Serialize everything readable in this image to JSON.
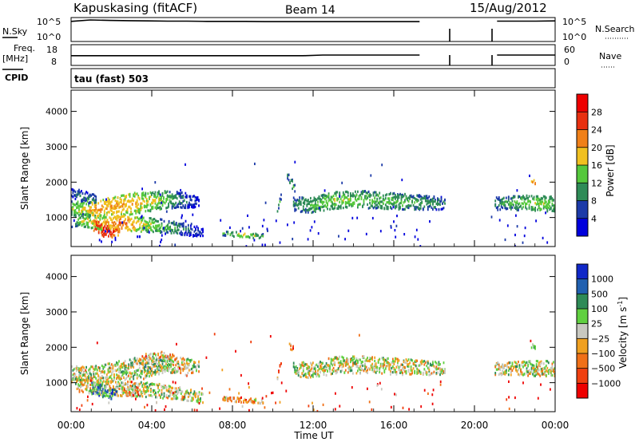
{
  "header": {
    "site": "Kapuskasing (fitACF)",
    "beam": "Beam 14",
    "date": "15/Aug/2012"
  },
  "summary": {
    "nsky_label": "N.Sky",
    "nsky_ticks": [
      "10^5",
      "10^0"
    ],
    "nsearch_label": "N.Search",
    "freq_label": "Freq.",
    "freq_unit": "[MHz]",
    "freq_ticks": [
      "18",
      "8"
    ],
    "nave_label": "Nave",
    "nave_ticks": [
      "60",
      "0"
    ],
    "cpid_label": "CPID",
    "cpid_value": "tau (fast) 503",
    "nsky_level": [
      0.84,
      0.9,
      0.88,
      0.87,
      0.86,
      0.85,
      0.85,
      0.84,
      0.84,
      0.84,
      0.83,
      0.83,
      0.83,
      0.83,
      0.83,
      0.83,
      0.83,
      0.83,
      0.83,
      null,
      null,
      null,
      0.85,
      0.85,
      0.85,
      0.86
    ],
    "freq_level": [
      0.47,
      0.47,
      0.47,
      0.47,
      0.47,
      0.47,
      0.47,
      0.47,
      0.47,
      0.47,
      0.47,
      0.47,
      0.47,
      0.5,
      0.5,
      0.5,
      0.5,
      0.5,
      0.5,
      null,
      null,
      null,
      0.5,
      0.5,
      0.5,
      0.5
    ]
  },
  "chart_data": [
    {
      "type": "heatmap",
      "name": "power",
      "ylabel": "Slant Range [km]",
      "yticks": [
        1000,
        2000,
        3000,
        4000
      ],
      "ylim": [
        180,
        4600
      ],
      "xlim": [
        0,
        24
      ],
      "colorbar_label": "Power [dB]",
      "colorbar_ticks": [
        4,
        8,
        12,
        16,
        20,
        24,
        28
      ],
      "colorbar_range": [
        0,
        32
      ],
      "colors": [
        "#0000dd",
        "#1c3aa8",
        "#2e8b57",
        "#55c83c",
        "#f0c020",
        "#f08018",
        "#e83010",
        "#ee0000"
      ],
      "features": [
        {
          "t": [
            0.0,
            1.2,
            3.0,
            4.5,
            5.5,
            6.3
          ],
          "r": [
            1250,
            1250,
            1400,
            1520,
            1500,
            1450
          ],
          "w": [
            220,
            240,
            300,
            260,
            220,
            160
          ],
          "v": [
            14,
            22,
            20,
            16,
            10,
            6
          ]
        },
        {
          "t": [
            0.2,
            1.5,
            2.5,
            4.0,
            5.2,
            6.5
          ],
          "r": [
            950,
            850,
            850,
            800,
            720,
            580
          ],
          "w": [
            180,
            200,
            220,
            200,
            180,
            140
          ],
          "v": [
            14,
            20,
            24,
            16,
            12,
            6
          ]
        },
        {
          "t": [
            1.1,
            1.6,
            2.0,
            2.4
          ],
          "r": [
            800,
            650,
            600,
            650
          ],
          "w": [
            160,
            180,
            160,
            120
          ],
          "v": [
            28,
            30,
            28,
            24
          ]
        },
        {
          "t": [
            0.0,
            0.6,
            1.2
          ],
          "r": [
            1700,
            1600,
            1500
          ],
          "w": [
            160,
            160,
            140
          ],
          "v": [
            8,
            10,
            10
          ]
        },
        {
          "t": [
            7.5,
            8.5,
            9.5
          ],
          "r": [
            560,
            520,
            480
          ],
          "w": [
            60,
            70,
            60
          ],
          "v": [
            12,
            18,
            12
          ]
        },
        {
          "t": [
            10.2,
            10.3,
            10.4
          ],
          "r": [
            1200,
            1400,
            1650
          ],
          "w": [
            90,
            100,
            90
          ],
          "v": [
            10,
            12,
            10
          ]
        },
        {
          "t": [
            10.7,
            10.9,
            11.1
          ],
          "r": [
            2200,
            2000,
            1800
          ],
          "w": [
            120,
            140,
            120
          ],
          "v": [
            10,
            14,
            10
          ]
        },
        {
          "t": [
            11.0,
            12.0,
            13.0,
            14.5,
            16.0,
            17.5,
            18.5
          ],
          "r": [
            1400,
            1350,
            1500,
            1520,
            1470,
            1430,
            1420
          ],
          "w": [
            200,
            230,
            240,
            240,
            230,
            200,
            180
          ],
          "v": [
            10,
            14,
            16,
            14,
            14,
            12,
            10
          ]
        },
        {
          "t": [
            21.0,
            22.0,
            23.0,
            24.0
          ],
          "r": [
            1400,
            1420,
            1420,
            1400
          ],
          "w": [
            180,
            200,
            220,
            220
          ],
          "v": [
            10,
            14,
            16,
            14
          ]
        },
        {
          "t": [
            22.8,
            23.0
          ],
          "r": [
            2050,
            2000
          ],
          "w": [
            60,
            60
          ],
          "v": [
            20,
            24
          ]
        }
      ]
    },
    {
      "type": "heatmap",
      "name": "velocity",
      "ylabel": "Slant Range [km]",
      "yticks": [
        1000,
        2000,
        3000,
        4000
      ],
      "ylim": [
        180,
        4600
      ],
      "xlim": [
        0,
        24
      ],
      "xticks": [
        "00:00",
        "04:00",
        "08:00",
        "12:00",
        "16:00",
        "20:00",
        "00:00"
      ],
      "xlabel": "Time UT",
      "colorbar_label": "Velocity [m s",
      "colorbar_label_sup": "-1",
      "colorbar_ticks": [
        "1000",
        "500",
        "100",
        "25",
        "−25",
        "−100",
        "−500",
        "−1000"
      ],
      "colors": [
        "#1028c8",
        "#2060b0",
        "#2e8b57",
        "#60d040",
        "#c8c8c0",
        "#f0a020",
        "#f07018",
        "#f04010",
        "#ee0000"
      ],
      "ground_color": "#c8c8c0",
      "features": [
        {
          "t": [
            0.0,
            1.2,
            3.0,
            4.5,
            5.5,
            6.3
          ],
          "r": [
            1250,
            1250,
            1400,
            1520,
            1500,
            1450
          ],
          "w": [
            220,
            240,
            300,
            260,
            220,
            160
          ],
          "v": [
            4,
            4,
            4,
            4,
            4,
            4
          ]
        },
        {
          "t": [
            0.2,
            1.5,
            2.5,
            4.0,
            5.2,
            6.5
          ],
          "r": [
            950,
            850,
            850,
            800,
            720,
            580
          ],
          "w": [
            180,
            200,
            220,
            200,
            180,
            140
          ],
          "v": [
            4,
            4,
            4,
            4,
            4,
            4
          ]
        },
        {
          "t": [
            1.0,
            1.6,
            2.2
          ],
          "r": [
            850,
            750,
            700
          ],
          "w": [
            160,
            180,
            160
          ],
          "v": [
            2,
            2,
            2
          ]
        },
        {
          "t": [
            2.5,
            3.3
          ],
          "r": [
            750,
            780
          ],
          "w": [
            120,
            120
          ],
          "v": [
            5,
            6
          ]
        },
        {
          "t": [
            3.6,
            4.3,
            5.0
          ],
          "r": [
            1400,
            1500,
            1650
          ],
          "w": [
            160,
            180,
            160
          ],
          "v": [
            3,
            3,
            3
          ]
        },
        {
          "t": [
            3.5,
            4.5,
            5.2
          ],
          "r": [
            1750,
            1800,
            1700
          ],
          "w": [
            80,
            80,
            80
          ],
          "v": [
            5,
            5,
            6
          ]
        },
        {
          "t": [
            10.2,
            10.3,
            10.4
          ],
          "r": [
            1200,
            1400,
            1650
          ],
          "w": [
            90,
            100,
            90
          ],
          "v": [
            6,
            7,
            6
          ]
        },
        {
          "t": [
            10.8,
            11.0
          ],
          "r": [
            2100,
            1950
          ],
          "w": [
            120,
            120
          ],
          "v": [
            6,
            7
          ]
        },
        {
          "t": [
            11.0,
            12.0,
            13.0,
            14.5,
            16.0,
            17.5,
            18.5
          ],
          "r": [
            1400,
            1350,
            1500,
            1520,
            1470,
            1430,
            1420
          ],
          "w": [
            200,
            230,
            240,
            240,
            230,
            200,
            180
          ],
          "v": [
            4,
            4,
            4,
            4,
            4,
            4,
            4
          ]
        },
        {
          "t": [
            21.0,
            22.0,
            23.0,
            24.0
          ],
          "r": [
            1400,
            1420,
            1420,
            1400
          ],
          "w": [
            180,
            200,
            220,
            220
          ],
          "v": [
            4,
            4,
            4,
            4
          ]
        },
        {
          "t": [
            22.8,
            23.0
          ],
          "r": [
            2050,
            2000
          ],
          "w": [
            60,
            60
          ],
          "v": [
            2,
            3
          ]
        },
        {
          "t": [
            7.5,
            8.5,
            9.5
          ],
          "r": [
            560,
            520,
            480
          ],
          "w": [
            60,
            70,
            60
          ],
          "v": [
            5,
            6,
            5
          ]
        }
      ]
    }
  ]
}
